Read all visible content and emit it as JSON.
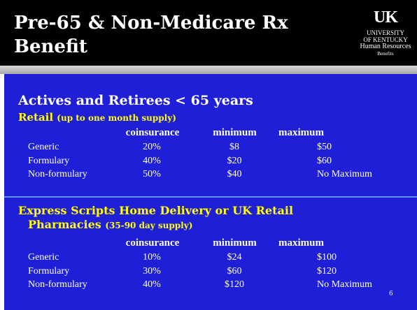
{
  "header": {
    "title": "Pre-65 & Non-Medicare Rx Benefit"
  },
  "logo": {
    "mark": "UK",
    "lines": [
      "UNIVERSITY",
      "OF KENTUCKY",
      "Human Resources",
      "Benefits"
    ]
  },
  "heading": "Actives and Retirees < 65 years",
  "sections": [
    {
      "title": "Retail",
      "note": "(up to one month supply)",
      "columns": [
        "coinsurance",
        "minimum",
        "maximum"
      ],
      "rows": [
        [
          "Generic",
          "20%",
          "$8",
          "$50"
        ],
        [
          "Formulary",
          "40%",
          "$20",
          "$60"
        ],
        [
          "Non-formulary",
          "50%",
          "$40",
          "No Maximum"
        ]
      ]
    },
    {
      "title": "Express Scripts Home Delivery or UK Retail Pharmacies",
      "note": "(35-90 day supply)",
      "columns": [
        "coinsurance",
        "minimum",
        "maximum"
      ],
      "rows": [
        [
          "Generic",
          "10%",
          "$24",
          "$100"
        ],
        [
          "Formulary",
          "30%",
          "$60",
          "$120"
        ],
        [
          "Non-formulary",
          "40%",
          "$120",
          "No Maximum"
        ]
      ]
    }
  ],
  "page_number": "6"
}
